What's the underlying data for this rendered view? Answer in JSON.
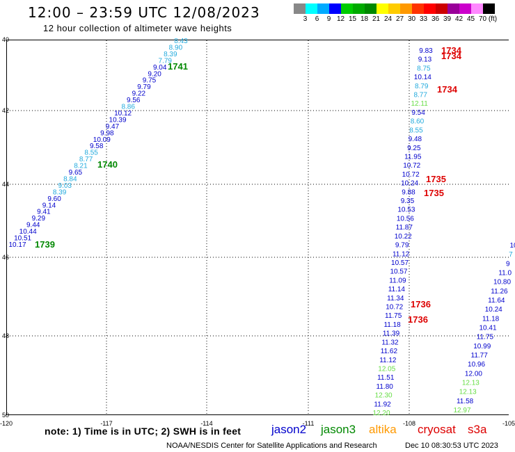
{
  "header": {
    "title": "12:00 – 23:59 UTC 12/08/2023",
    "subtitle": "12 hour collection of altimeter wave heights"
  },
  "colorbar": {
    "unit": "(ft)",
    "ticks": [
      "3",
      "6",
      "9",
      "12",
      "15",
      "18",
      "21",
      "24",
      "27",
      "30",
      "33",
      "36",
      "39",
      "42",
      "45",
      "70"
    ],
    "colors": [
      "#888888",
      "#00ffff",
      "#00aaff",
      "#0000ff",
      "#00cc00",
      "#00aa00",
      "#008800",
      "#ffff00",
      "#ffcc00",
      "#ff9900",
      "#ff3300",
      "#ff0000",
      "#cc0000",
      "#990099",
      "#cc00cc",
      "#ff88ff",
      "#000000"
    ]
  },
  "axes": {
    "lat_labels": [
      "40",
      "42",
      "44",
      "46",
      "48",
      "50"
    ],
    "lon_labels": [
      "-120",
      "-117",
      "-114",
      "-111",
      "-108",
      "-105"
    ]
  },
  "tracks": [
    {
      "id": "left",
      "points": [
        {
          "v": "8.43",
          "c": "light"
        },
        {
          "v": "8.90",
          "c": "light"
        },
        {
          "v": "8.39",
          "c": "light"
        },
        {
          "v": "7.79",
          "c": "light"
        },
        {
          "v": "9.04",
          "c": "blue"
        },
        {
          "v": "9.20",
          "c": "blue"
        },
        {
          "v": "9.75",
          "c": "blue"
        },
        {
          "v": "9.79",
          "c": "blue"
        },
        {
          "v": "9.22",
          "c": "blue"
        },
        {
          "v": "9.56",
          "c": "blue"
        },
        {
          "v": "8.86",
          "c": "light"
        },
        {
          "v": "10.12",
          "c": "blue"
        },
        {
          "v": "10.39",
          "c": "blue"
        },
        {
          "v": "9.47",
          "c": "blue"
        },
        {
          "v": "9.98",
          "c": "blue"
        },
        {
          "v": "10.09",
          "c": "blue"
        },
        {
          "v": "9.58",
          "c": "blue"
        },
        {
          "v": "8.55",
          "c": "light"
        },
        {
          "v": "8.77",
          "c": "light"
        },
        {
          "v": "8.21",
          "c": "light"
        },
        {
          "v": "9.65",
          "c": "blue"
        },
        {
          "v": "8.84",
          "c": "light"
        },
        {
          "v": "9.03",
          "c": "light"
        },
        {
          "v": "8.39",
          "c": "light"
        },
        {
          "v": "9.60",
          "c": "blue"
        },
        {
          "v": "9.14",
          "c": "blue"
        },
        {
          "v": "9.41",
          "c": "blue"
        },
        {
          "v": "9.29",
          "c": "blue"
        },
        {
          "v": "9.44",
          "c": "blue"
        },
        {
          "v": "10.44",
          "c": "blue"
        },
        {
          "v": "10.51",
          "c": "blue"
        },
        {
          "v": "10.17",
          "c": "blue"
        }
      ]
    },
    {
      "id": "middle",
      "points": [
        {
          "v": "9.83",
          "c": "blue"
        },
        {
          "v": "9.13",
          "c": "blue"
        },
        {
          "v": "8.75",
          "c": "light"
        },
        {
          "v": "10.14",
          "c": "blue"
        },
        {
          "v": "8.79",
          "c": "light"
        },
        {
          "v": "8.77",
          "c": "light"
        },
        {
          "v": "12.11",
          "c": "green"
        },
        {
          "v": "9.54",
          "c": "blue"
        },
        {
          "v": "8.60",
          "c": "light"
        },
        {
          "v": "8.55",
          "c": "light"
        },
        {
          "v": "9.48",
          "c": "blue"
        },
        {
          "v": "9.25",
          "c": "blue"
        },
        {
          "v": "11.95",
          "c": "blue"
        },
        {
          "v": "10.72",
          "c": "blue"
        },
        {
          "v": "10.72",
          "c": "blue"
        },
        {
          "v": "10.24",
          "c": "blue"
        },
        {
          "v": "9.88",
          "c": "blue"
        },
        {
          "v": "9.35",
          "c": "blue"
        },
        {
          "v": "10.53",
          "c": "blue"
        },
        {
          "v": "10.56",
          "c": "blue"
        },
        {
          "v": "11.87",
          "c": "blue"
        },
        {
          "v": "10.22",
          "c": "blue"
        },
        {
          "v": "9.79",
          "c": "blue"
        },
        {
          "v": "11.12",
          "c": "blue"
        },
        {
          "v": "10.57",
          "c": "blue"
        },
        {
          "v": "10.57",
          "c": "blue"
        },
        {
          "v": "11.09",
          "c": "blue"
        },
        {
          "v": "11.14",
          "c": "blue"
        },
        {
          "v": "11.34",
          "c": "blue"
        },
        {
          "v": "10.72",
          "c": "blue"
        },
        {
          "v": "11.75",
          "c": "blue"
        },
        {
          "v": "11.18",
          "c": "blue"
        },
        {
          "v": "11.39",
          "c": "blue"
        },
        {
          "v": "11.32",
          "c": "blue"
        },
        {
          "v": "11.62",
          "c": "blue"
        },
        {
          "v": "11.12",
          "c": "blue"
        },
        {
          "v": "12.05",
          "c": "green"
        },
        {
          "v": "11.51",
          "c": "blue"
        },
        {
          "v": "11.80",
          "c": "blue"
        },
        {
          "v": "12.30",
          "c": "green"
        },
        {
          "v": "11.92",
          "c": "blue"
        },
        {
          "v": "12.20",
          "c": "green"
        }
      ]
    },
    {
      "id": "right",
      "points": [
        {
          "v": "10",
          "c": "blue"
        },
        {
          "v": "7",
          "c": "light"
        },
        {
          "v": "9",
          "c": "blue"
        },
        {
          "v": "11.0",
          "c": "blue"
        },
        {
          "v": "10.80",
          "c": "blue"
        },
        {
          "v": "11.26",
          "c": "blue"
        },
        {
          "v": "11.64",
          "c": "blue"
        },
        {
          "v": "10.24",
          "c": "blue"
        },
        {
          "v": "11.18",
          "c": "blue"
        },
        {
          "v": "10.41",
          "c": "blue"
        },
        {
          "v": "11.75",
          "c": "blue"
        },
        {
          "v": "10.99",
          "c": "blue"
        },
        {
          "v": "11.77",
          "c": "blue"
        },
        {
          "v": "10.96",
          "c": "blue"
        },
        {
          "v": "12.00",
          "c": "blue"
        },
        {
          "v": "12.13",
          "c": "green"
        },
        {
          "v": "12.13",
          "c": "green"
        },
        {
          "v": "11.58",
          "c": "blue"
        },
        {
          "v": "12.97",
          "c": "green"
        }
      ]
    }
  ],
  "time_labels": [
    {
      "t": "1741",
      "c": "green"
    },
    {
      "t": "1740",
      "c": "green"
    },
    {
      "t": "1739",
      "c": "green"
    },
    {
      "t": "1734",
      "c": "red"
    },
    {
      "t": "1734",
      "c": "red"
    },
    {
      "t": "1734",
      "c": "red"
    },
    {
      "t": "1735",
      "c": "red"
    },
    {
      "t": "1735",
      "c": "red"
    },
    {
      "t": "1736",
      "c": "red"
    },
    {
      "t": "1736",
      "c": "red"
    }
  ],
  "footer": {
    "note": "note:  1) Time is in UTC;  2) SWH is in feet",
    "satellites": [
      {
        "name": "jason2",
        "color": "#0000cc"
      },
      {
        "name": "jason3",
        "color": "#008800"
      },
      {
        "name": "altika",
        "color": "#ff9900"
      },
      {
        "name": "cryosat",
        "color": "#dd0000"
      },
      {
        "name": "s3a",
        "color": "#dd0000"
      }
    ],
    "credit": "NOAA/NESDIS Center for Satellite Applications and Research",
    "timestamp": "Dec 10 08:30:53 UTC 2023"
  },
  "colors": {
    "blue": "#0000cc",
    "light": "#22aadd",
    "green": "#66dd44",
    "time_green": "#008800",
    "time_red": "#dd0000"
  }
}
